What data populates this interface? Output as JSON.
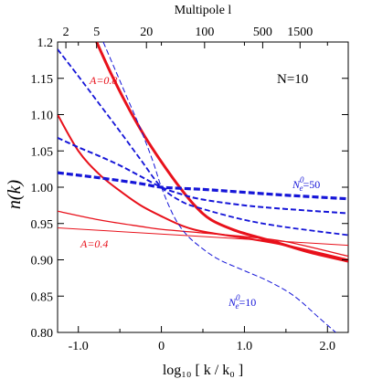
{
  "chart_data": {
    "type": "line",
    "title": "",
    "xlabel": "log₁₀ [ k / k₀ ]",
    "ylabel": "n(k)",
    "top_axis_label": "Multipole l",
    "xlim": [
      -1.25,
      2.25
    ],
    "ylim": [
      0.8,
      1.2
    ],
    "x_ticks": [
      -1.0,
      0.0,
      1.0,
      2.0
    ],
    "x_tick_labels": [
      "-1.0",
      "0",
      "1.0",
      "2.0"
    ],
    "y_ticks": [
      0.8,
      0.85,
      0.9,
      0.95,
      1.0,
      1.05,
      1.1,
      1.15,
      1.2
    ],
    "y_tick_labels": [
      "0.80",
      "0.85",
      "0.90",
      "0.95",
      "1.00",
      "1.05",
      "1.10",
      "1.15",
      "1.2"
    ],
    "top_ticks": [
      {
        "label": "2",
        "x": -1.15
      },
      {
        "label": "5",
        "x": -0.78
      },
      {
        "label": "20",
        "x": -0.18
      },
      {
        "label": "100",
        "x": 0.52
      },
      {
        "label": "500",
        "x": 1.22
      },
      {
        "label": "1500",
        "x": 1.67
      }
    ],
    "annotations": {
      "n_label": "N=10",
      "a_high": "A=0.8",
      "a_low": "A=0.4",
      "ne50": "N_e^0=50",
      "ne10": "N_e^0=10"
    },
    "colors": {
      "red": "#e8111b",
      "blue": "#1515d8"
    },
    "series": [
      {
        "color": "red",
        "style": "solid",
        "width": 3.0,
        "x": [
          -0.78,
          -0.6,
          -0.4,
          -0.2,
          0.0,
          0.2,
          0.4,
          0.6,
          0.9,
          1.2,
          1.5,
          1.8,
          2.25
        ],
        "y": [
          1.2,
          1.155,
          1.11,
          1.07,
          1.035,
          1.003,
          0.975,
          0.955,
          0.94,
          0.93,
          0.92,
          0.91,
          0.898
        ]
      },
      {
        "color": "red",
        "style": "solid",
        "width": 2.0,
        "x": [
          -1.25,
          -1.0,
          -0.75,
          -0.5,
          -0.25,
          0.0,
          0.25,
          0.5,
          1.0,
          1.5,
          2.25
        ],
        "y": [
          1.1,
          1.05,
          1.018,
          0.995,
          0.975,
          0.96,
          0.947,
          0.939,
          0.93,
          0.92,
          0.9
        ]
      },
      {
        "color": "red",
        "style": "solid",
        "width": 1.3,
        "x": [
          -1.25,
          -0.75,
          -0.25,
          0.0,
          0.5,
          1.0,
          1.5,
          2.25
        ],
        "y": [
          0.967,
          0.955,
          0.946,
          0.942,
          0.937,
          0.932,
          0.925,
          0.905
        ]
      },
      {
        "color": "red",
        "style": "solid",
        "width": 1.0,
        "x": [
          -1.25,
          2.25
        ],
        "y": [
          0.944,
          0.92
        ]
      },
      {
        "color": "blue",
        "style": "dashed",
        "width": 3.2,
        "x": [
          -1.25,
          -0.75,
          -0.25,
          0.0,
          0.5,
          1.0,
          1.5,
          2.25
        ],
        "y": [
          1.02,
          1.013,
          1.005,
          1.0,
          0.997,
          0.993,
          0.989,
          0.984
        ]
      },
      {
        "color": "blue",
        "style": "dashed",
        "width": 2.0,
        "x": [
          -1.25,
          -1.0,
          -0.75,
          -0.5,
          -0.25,
          0.0,
          0.25,
          0.5,
          1.0,
          1.5,
          2.25
        ],
        "y": [
          1.068,
          1.055,
          1.043,
          1.03,
          1.015,
          1.0,
          0.99,
          0.983,
          0.975,
          0.97,
          0.964
        ]
      },
      {
        "color": "blue",
        "style": "dashed",
        "width": 1.8,
        "x": [
          -1.25,
          -1.0,
          -0.75,
          -0.5,
          -0.25,
          0.0,
          0.25,
          0.5,
          1.0,
          1.5,
          2.25
        ],
        "y": [
          1.19,
          1.153,
          1.115,
          1.077,
          1.038,
          1.0,
          0.98,
          0.97,
          0.955,
          0.945,
          0.934
        ]
      },
      {
        "color": "blue",
        "style": "dashed",
        "width": 1.0,
        "x": [
          -0.7,
          -0.55,
          -0.4,
          -0.25,
          -0.1,
          0.0,
          0.15,
          0.3,
          0.5,
          0.7,
          1.0,
          1.3,
          1.6,
          1.9,
          2.1
        ],
        "y": [
          1.2,
          1.16,
          1.12,
          1.08,
          1.035,
          1.0,
          0.96,
          0.935,
          0.915,
          0.9,
          0.885,
          0.87,
          0.85,
          0.82,
          0.8
        ]
      }
    ]
  }
}
